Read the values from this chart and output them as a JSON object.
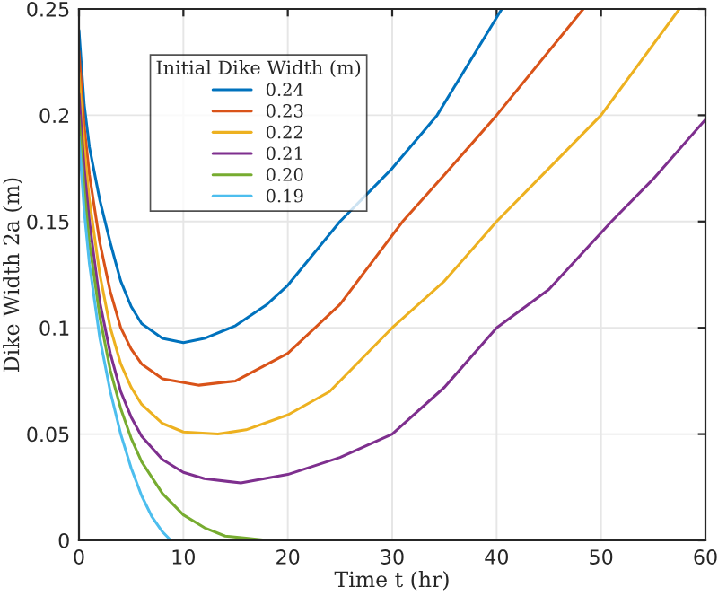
{
  "chart_data": {
    "type": "line",
    "xlabel": "Time t (hr)",
    "ylabel": "Dike Width 2a (m)",
    "legend_title": "Initial Dike Width (m)",
    "legend": "top left",
    "grid": true,
    "line_style": "solid",
    "marker": "none",
    "xlim": [
      0,
      60
    ],
    "ylim": [
      0,
      0.25
    ],
    "xticks": [
      0,
      10,
      20,
      30,
      40,
      50,
      60
    ],
    "yticks": [
      0,
      0.05,
      0.1,
      0.15,
      0.2,
      0.25
    ],
    "series": [
      {
        "name": "0.24",
        "color": "#0072bd",
        "x": [
          0,
          0.5,
          1,
          2,
          3,
          4,
          5,
          6,
          8,
          10,
          12,
          15,
          18,
          20,
          25,
          30,
          34.3,
          40.5
        ],
        "values": [
          0.24,
          0.205,
          0.185,
          0.16,
          0.14,
          0.122,
          0.11,
          0.102,
          0.095,
          0.093,
          0.095,
          0.101,
          0.111,
          0.12,
          0.15,
          0.175,
          0.2,
          0.25
        ]
      },
      {
        "name": "0.23",
        "color": "#d95319",
        "x": [
          0,
          0.5,
          1,
          2,
          3,
          4,
          5,
          6,
          8,
          11.5,
          15,
          20,
          25,
          31,
          35,
          40,
          48.3
        ],
        "values": [
          0.23,
          0.195,
          0.172,
          0.14,
          0.117,
          0.1,
          0.09,
          0.083,
          0.076,
          0.073,
          0.075,
          0.088,
          0.111,
          0.15,
          0.172,
          0.2,
          0.25
        ]
      },
      {
        "name": "0.22",
        "color": "#edb120",
        "x": [
          0,
          0.5,
          1,
          2,
          3,
          4,
          5,
          6,
          8,
          10,
          13.3,
          16,
          20,
          24,
          30,
          35,
          40,
          45,
          50,
          57.5
        ],
        "values": [
          0.22,
          0.185,
          0.16,
          0.125,
          0.1,
          0.083,
          0.072,
          0.064,
          0.055,
          0.051,
          0.05,
          0.052,
          0.059,
          0.07,
          0.1,
          0.122,
          0.15,
          0.175,
          0.2,
          0.25
        ]
      },
      {
        "name": "0.21",
        "color": "#7e2f8e",
        "x": [
          0,
          0.5,
          1,
          2,
          3,
          4,
          5,
          6,
          8,
          10,
          12,
          15.5,
          20,
          25,
          30,
          35,
          40,
          45,
          51,
          55,
          60
        ],
        "values": [
          0.21,
          0.175,
          0.15,
          0.112,
          0.088,
          0.07,
          0.058,
          0.049,
          0.038,
          0.032,
          0.029,
          0.027,
          0.031,
          0.039,
          0.05,
          0.072,
          0.1,
          0.118,
          0.15,
          0.17,
          0.198
        ]
      },
      {
        "name": "0.20",
        "color": "#77ac30",
        "x": [
          0,
          0.5,
          1,
          2,
          3,
          4,
          5,
          6,
          8,
          10,
          12,
          14,
          16,
          18
        ],
        "values": [
          0.2,
          0.165,
          0.14,
          0.105,
          0.08,
          0.062,
          0.048,
          0.037,
          0.022,
          0.012,
          0.006,
          0.002,
          0.001,
          0
        ]
      },
      {
        "name": "0.19",
        "color": "#4dbeee",
        "x": [
          0,
          0.5,
          1,
          2,
          3,
          4,
          5,
          6,
          7,
          8,
          8.8
        ],
        "values": [
          0.19,
          0.155,
          0.13,
          0.095,
          0.07,
          0.05,
          0.034,
          0.021,
          0.011,
          0.004,
          0
        ]
      }
    ]
  }
}
